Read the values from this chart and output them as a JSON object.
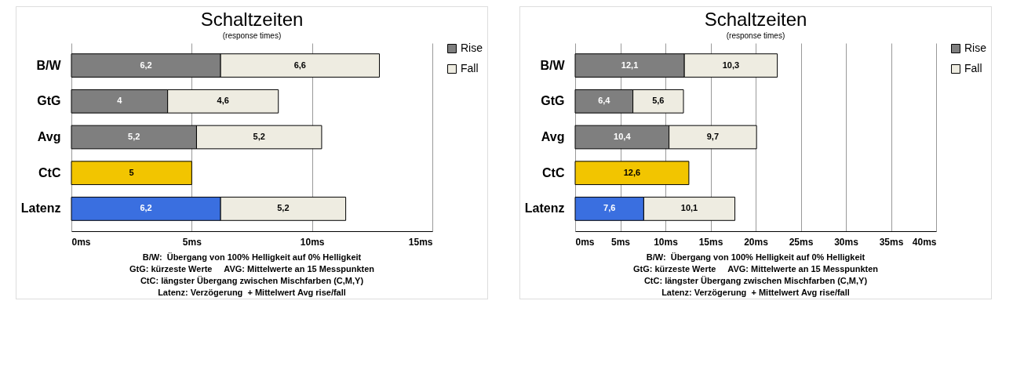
{
  "chart_data": [
    {
      "type": "bar",
      "orientation": "horizontal",
      "stacked": true,
      "title": "Schaltzeiten",
      "subtitle": "(response times)",
      "categories": [
        "B/W",
        "GtG",
        "Avg",
        "CtC",
        "Latenz"
      ],
      "series": [
        {
          "name": "Rise",
          "color": "#7f7f7f",
          "colors": [
            "#7f7f7f",
            "#7f7f7f",
            "#7f7f7f",
            "#f2c500",
            "#3a6fe0"
          ],
          "values": [
            6.2,
            4,
            5.2,
            5,
            6.2
          ],
          "value_labels": [
            "6,2",
            "4",
            "5,2",
            "5",
            "6,2"
          ]
        },
        {
          "name": "Fall",
          "color": "#eeece1",
          "colors": [
            "#eeece1",
            "#eeece1",
            "#eeece1",
            null,
            "#eeece1"
          ],
          "values": [
            6.6,
            4.6,
            5.2,
            null,
            5.2
          ],
          "value_labels": [
            "6,6",
            "4,6",
            "5,2",
            null,
            "5,2"
          ]
        }
      ],
      "xlim": [
        0,
        15
      ],
      "xticks": [
        {
          "value": 0,
          "label": "0ms"
        },
        {
          "value": 5,
          "label": "5ms"
        },
        {
          "value": 10,
          "label": "10ms"
        },
        {
          "value": 15,
          "label": "15ms"
        }
      ],
      "grid": "x",
      "legend": "right",
      "annotations": [
        "B/W:  Übergang von 100% Helligkeit auf 0% Helligkeit",
        "GtG: kürzeste Werte     AVG: Mittelwerte an 15 Messpunkten",
        "CtC: längster Übergang zwischen Mischfarben (C,M,Y)",
        "Latenz: Verzögerung  + Mittelwert Avg rise/fall"
      ]
    },
    {
      "type": "bar",
      "orientation": "horizontal",
      "stacked": true,
      "title": "Schaltzeiten",
      "subtitle": "(response times)",
      "categories": [
        "B/W",
        "GtG",
        "Avg",
        "CtC",
        "Latenz"
      ],
      "series": [
        {
          "name": "Rise",
          "color": "#7f7f7f",
          "colors": [
            "#7f7f7f",
            "#7f7f7f",
            "#7f7f7f",
            "#f2c500",
            "#3a6fe0"
          ],
          "values": [
            12.1,
            6.4,
            10.4,
            12.6,
            7.6
          ],
          "value_labels": [
            "12,1",
            "6,4",
            "10,4",
            "12,6",
            "7,6"
          ]
        },
        {
          "name": "Fall",
          "color": "#eeece1",
          "colors": [
            "#eeece1",
            "#eeece1",
            "#eeece1",
            null,
            "#eeece1"
          ],
          "values": [
            10.3,
            5.6,
            9.7,
            null,
            10.1
          ],
          "value_labels": [
            "10,3",
            "5,6",
            "9,7",
            null,
            "10,1"
          ]
        }
      ],
      "xlim": [
        0,
        40
      ],
      "xticks": [
        {
          "value": 0,
          "label": "0ms"
        },
        {
          "value": 5,
          "label": "5ms"
        },
        {
          "value": 10,
          "label": "10ms"
        },
        {
          "value": 15,
          "label": "15ms"
        },
        {
          "value": 20,
          "label": "20ms"
        },
        {
          "value": 25,
          "label": "25ms"
        },
        {
          "value": 30,
          "label": "30ms"
        },
        {
          "value": 35,
          "label": "35ms"
        },
        {
          "value": 40,
          "label": "40ms"
        }
      ],
      "grid": "x",
      "legend": "right",
      "annotations": [
        "B/W:  Übergang von 100% Helligkeit auf 0% Helligkeit",
        "GtG: kürzeste Werte     AVG: Mittelwerte an 15 Messpunkten",
        "CtC: längster Übergang zwischen Mischfarben (C,M,Y)",
        "Latenz: Verzögerung  + Mittelwert Avg rise/fall"
      ]
    }
  ]
}
